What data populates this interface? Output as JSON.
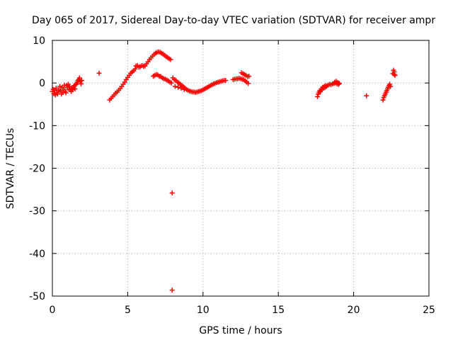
{
  "chart_data": {
    "type": "scatter",
    "title": "Day 065 of 2017, Sidereal Day-to-day VTEC variation (SDTVAR) for receiver ampr",
    "xlabel": "GPS time / hours",
    "ylabel": "SDTVAR / TECUs",
    "xlim": [
      0,
      25
    ],
    "ylim": [
      -50,
      10
    ],
    "xticks": [
      0,
      5,
      10,
      15,
      20,
      25
    ],
    "yticks": [
      -50,
      -40,
      -30,
      -20,
      -10,
      0,
      10
    ],
    "grid": true,
    "marker": "+",
    "color": "#ff0000",
    "series": [
      {
        "name": "SDTVAR",
        "points": [
          [
            0.0,
            -2.0
          ],
          [
            0.05,
            -1.5
          ],
          [
            0.1,
            -2.5
          ],
          [
            0.15,
            -1.8
          ],
          [
            0.2,
            -2.8
          ],
          [
            0.25,
            -1.2
          ],
          [
            0.3,
            -2.2
          ],
          [
            0.35,
            -2.6
          ],
          [
            0.4,
            -1.6
          ],
          [
            0.45,
            -2.0
          ],
          [
            0.5,
            -0.8
          ],
          [
            0.55,
            -1.8
          ],
          [
            0.6,
            -2.6
          ],
          [
            0.65,
            -1.0
          ],
          [
            0.7,
            -2.2
          ],
          [
            0.75,
            -1.4
          ],
          [
            0.8,
            -0.5
          ],
          [
            0.85,
            -1.9
          ],
          [
            0.9,
            -2.3
          ],
          [
            0.95,
            -0.6
          ],
          [
            1.0,
            -1.0
          ],
          [
            1.05,
            -0.3
          ],
          [
            1.1,
            -1.5
          ],
          [
            1.15,
            -0.8
          ],
          [
            1.2,
            -1.6
          ],
          [
            1.25,
            -2.0
          ],
          [
            1.3,
            -1.2
          ],
          [
            1.35,
            -1.6
          ],
          [
            1.4,
            -1.0
          ],
          [
            1.45,
            -0.6
          ],
          [
            1.5,
            -1.4
          ],
          [
            1.55,
            -0.4
          ],
          [
            1.6,
            -0.2
          ],
          [
            1.65,
            0.2
          ],
          [
            1.7,
            0.6
          ],
          [
            1.75,
            0.8
          ],
          [
            1.8,
            1.2
          ],
          [
            1.85,
            0.4
          ],
          [
            1.9,
            -0.2
          ],
          [
            1.95,
            0.6
          ],
          [
            3.1,
            2.3
          ],
          [
            3.8,
            -4.0
          ],
          [
            3.9,
            -3.6
          ],
          [
            4.0,
            -3.2
          ],
          [
            4.1,
            -2.8
          ],
          [
            4.2,
            -2.4
          ],
          [
            4.3,
            -2.1
          ],
          [
            4.4,
            -1.7
          ],
          [
            4.5,
            -1.3
          ],
          [
            4.6,
            -0.8
          ],
          [
            4.7,
            -0.3
          ],
          [
            4.8,
            0.2
          ],
          [
            4.9,
            0.8
          ],
          [
            5.0,
            1.3
          ],
          [
            5.1,
            1.8
          ],
          [
            5.2,
            2.3
          ],
          [
            5.3,
            2.6
          ],
          [
            5.4,
            2.9
          ],
          [
            5.5,
            3.3
          ],
          [
            5.55,
            4.0
          ],
          [
            5.65,
            4.1
          ],
          [
            5.75,
            3.7
          ],
          [
            5.85,
            3.9
          ],
          [
            5.95,
            4.1
          ],
          [
            6.05,
            3.9
          ],
          [
            6.15,
            4.0
          ],
          [
            6.25,
            4.5
          ],
          [
            6.35,
            5.0
          ],
          [
            6.45,
            5.5
          ],
          [
            6.55,
            5.9
          ],
          [
            6.65,
            6.3
          ],
          [
            6.75,
            6.7
          ],
          [
            6.85,
            7.0
          ],
          [
            6.95,
            7.2
          ],
          [
            7.05,
            7.3
          ],
          [
            7.15,
            7.2
          ],
          [
            7.25,
            7.0
          ],
          [
            7.35,
            6.8
          ],
          [
            7.45,
            6.5
          ],
          [
            7.55,
            6.2
          ],
          [
            7.65,
            6.0
          ],
          [
            7.75,
            5.7
          ],
          [
            7.85,
            5.5
          ],
          [
            6.7,
            1.6
          ],
          [
            6.8,
            1.8
          ],
          [
            6.9,
            2.0
          ],
          [
            7.0,
            1.9
          ],
          [
            7.1,
            1.6
          ],
          [
            7.2,
            1.5
          ],
          [
            7.3,
            1.2
          ],
          [
            7.4,
            1.0
          ],
          [
            7.5,
            0.9
          ],
          [
            7.6,
            0.7
          ],
          [
            7.7,
            0.5
          ],
          [
            7.8,
            0.2
          ],
          [
            7.9,
            0.0
          ],
          [
            7.95,
            -25.8
          ],
          [
            7.95,
            -48.6
          ],
          [
            8.0,
            1.2
          ],
          [
            8.1,
            0.8
          ],
          [
            8.15,
            -0.8
          ],
          [
            8.2,
            0.6
          ],
          [
            8.3,
            0.2
          ],
          [
            8.35,
            -1.0
          ],
          [
            8.4,
            0.0
          ],
          [
            8.5,
            -0.3
          ],
          [
            8.55,
            -1.2
          ],
          [
            8.6,
            -0.6
          ],
          [
            8.7,
            -0.9
          ],
          [
            8.75,
            -1.5
          ],
          [
            8.8,
            -1.2
          ],
          [
            8.9,
            -1.5
          ],
          [
            9.0,
            -1.7
          ],
          [
            9.1,
            -1.9
          ],
          [
            9.2,
            -2.0
          ],
          [
            9.3,
            -2.1
          ],
          [
            9.4,
            -2.1
          ],
          [
            9.5,
            -2.2
          ],
          [
            9.6,
            -2.1
          ],
          [
            9.7,
            -2.0
          ],
          [
            9.8,
            -1.9
          ],
          [
            9.9,
            -1.8
          ],
          [
            10.0,
            -1.6
          ],
          [
            10.1,
            -1.4
          ],
          [
            10.2,
            -1.2
          ],
          [
            10.3,
            -1.0
          ],
          [
            10.4,
            -0.8
          ],
          [
            10.5,
            -0.6
          ],
          [
            10.6,
            -0.4
          ],
          [
            10.7,
            -0.2
          ],
          [
            10.8,
            -0.1
          ],
          [
            10.9,
            0.1
          ],
          [
            11.0,
            0.2
          ],
          [
            11.1,
            0.3
          ],
          [
            11.2,
            0.4
          ],
          [
            11.3,
            0.5
          ],
          [
            11.4,
            0.6
          ],
          [
            11.5,
            0.6
          ],
          [
            12.0,
            0.8
          ],
          [
            12.1,
            0.9
          ],
          [
            12.2,
            1.0
          ],
          [
            12.3,
            1.0
          ],
          [
            12.4,
            1.1
          ],
          [
            12.5,
            1.0
          ],
          [
            12.55,
            2.4
          ],
          [
            12.6,
            0.9
          ],
          [
            12.65,
            2.2
          ],
          [
            12.7,
            0.8
          ],
          [
            12.75,
            2.0
          ],
          [
            12.8,
            0.5
          ],
          [
            12.85,
            1.8
          ],
          [
            12.9,
            0.2
          ],
          [
            12.95,
            1.5
          ],
          [
            13.0,
            -0.1
          ],
          [
            13.05,
            1.6
          ],
          [
            17.6,
            -3.2
          ],
          [
            17.65,
            -2.6
          ],
          [
            17.7,
            -2.2
          ],
          [
            17.75,
            -1.8
          ],
          [
            17.8,
            -2.0
          ],
          [
            17.85,
            -1.4
          ],
          [
            17.9,
            -1.6
          ],
          [
            17.95,
            -1.0
          ],
          [
            18.0,
            -1.2
          ],
          [
            18.05,
            -0.8
          ],
          [
            18.1,
            -1.0
          ],
          [
            18.15,
            -0.6
          ],
          [
            18.2,
            -0.8
          ],
          [
            18.3,
            -0.5
          ],
          [
            18.4,
            -0.3
          ],
          [
            18.5,
            -0.4
          ],
          [
            18.6,
            -0.2
          ],
          [
            18.7,
            -0.1
          ],
          [
            18.75,
            0.2
          ],
          [
            18.8,
            0.0
          ],
          [
            18.85,
            0.4
          ],
          [
            18.9,
            -0.2
          ],
          [
            18.95,
            0.1
          ],
          [
            19.0,
            -0.3
          ],
          [
            19.05,
            -0.1
          ],
          [
            20.85,
            -3.0
          ],
          [
            21.95,
            -4.0
          ],
          [
            22.0,
            -3.4
          ],
          [
            22.05,
            -3.0
          ],
          [
            22.1,
            -2.6
          ],
          [
            22.15,
            -2.2
          ],
          [
            22.2,
            -1.8
          ],
          [
            22.25,
            -1.4
          ],
          [
            22.3,
            -1.0
          ],
          [
            22.35,
            -0.6
          ],
          [
            22.4,
            -0.3
          ],
          [
            22.45,
            -0.8
          ],
          [
            22.6,
            2.2
          ],
          [
            22.65,
            3.0
          ],
          [
            22.7,
            2.6
          ],
          [
            22.75,
            1.8
          ],
          [
            22.7,
            2.0
          ]
        ]
      }
    ]
  }
}
